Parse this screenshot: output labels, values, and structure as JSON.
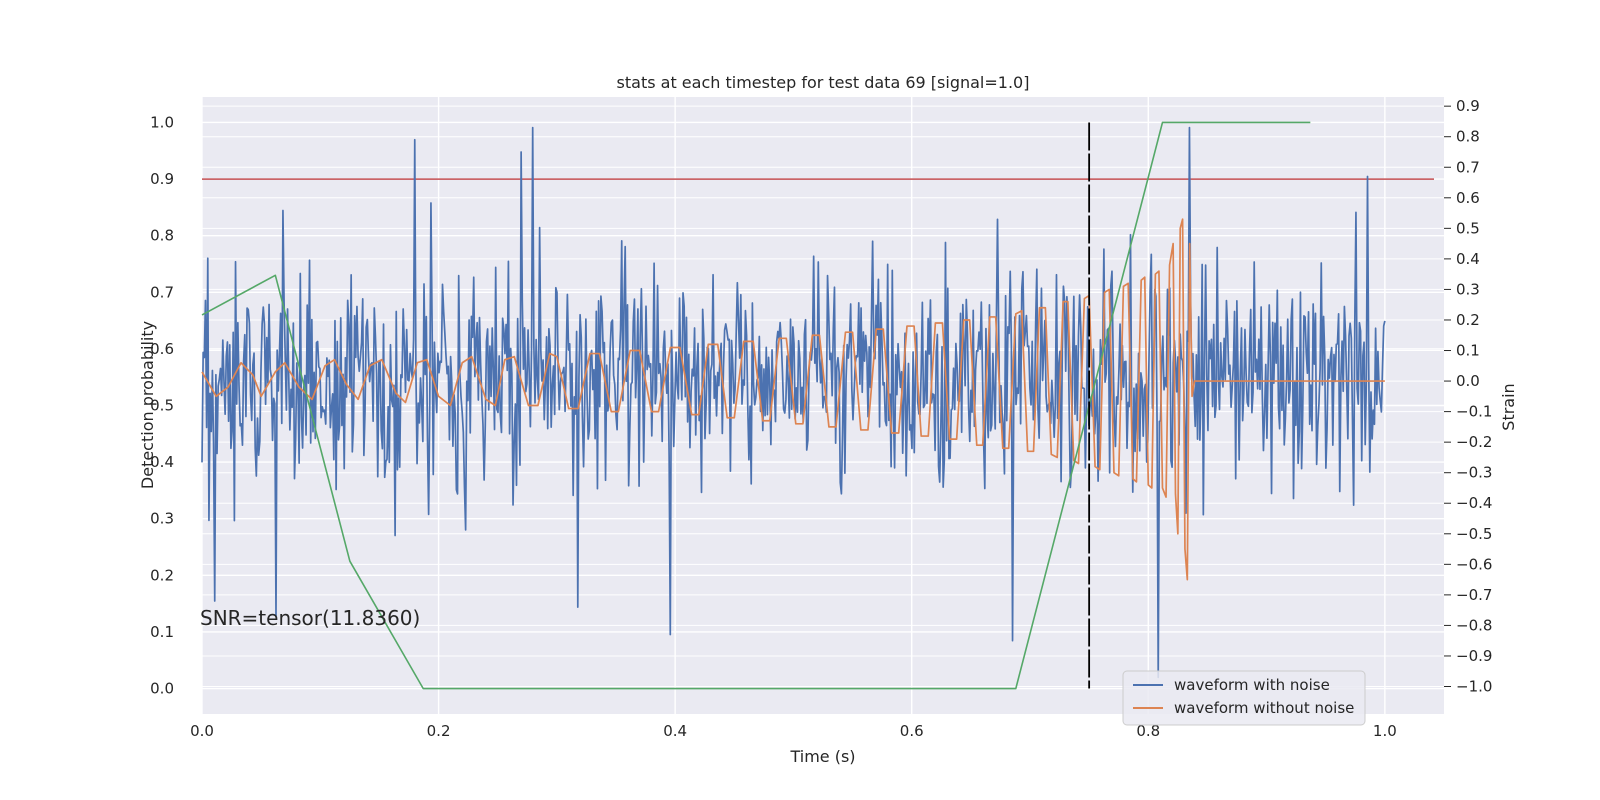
{
  "chart_data": {
    "type": "line",
    "title": "stats at each timestep for test data 69 [signal=1.0]",
    "xlabel": "Time (s)",
    "ylabel_left": "Detection probability",
    "ylabel_right": "Strain",
    "xlim": [
      0.0,
      1.05
    ],
    "ylim_left": [
      -0.045,
      1.045
    ],
    "ylim_right": [
      -1.09,
      0.93
    ],
    "x_ticks": [
      "0.0",
      "0.2",
      "0.4",
      "0.6",
      "0.8",
      "1.0"
    ],
    "y_left_ticks": [
      "0.0",
      "0.1",
      "0.2",
      "0.3",
      "0.4",
      "0.5",
      "0.6",
      "0.7",
      "0.8",
      "0.9",
      "1.0"
    ],
    "y_right_ticks": [
      "−1.0",
      "−0.9",
      "−0.8",
      "−0.7",
      "−0.6",
      "−0.5",
      "−0.4",
      "−0.3",
      "−0.2",
      "−0.1",
      "0.0",
      "0.1",
      "0.2",
      "0.3",
      "0.4",
      "0.5",
      "0.6",
      "0.7",
      "0.8",
      "0.9"
    ],
    "annotation": "SNR=tensor(11.8360)",
    "threshold": {
      "axis": "left",
      "y": 0.9,
      "color": "#c44e52"
    },
    "marker_line": {
      "x": 0.75,
      "y_range": [
        0.0,
        1.0
      ],
      "color": "#000000",
      "style": "dashed"
    },
    "grid": true,
    "legend_position": "bottom-right",
    "series": [
      {
        "name": "waveform with noise",
        "axis": "right",
        "color": "#4c72b0",
        "kind": "noise",
        "x_range": [
          0.0,
          1.0
        ],
        "sample_count": 1024,
        "approx_std": 0.18,
        "approx_range": [
          -1.0,
          0.83
        ],
        "visible_extremes": [
          {
            "x": 0.011,
            "y": -0.72
          },
          {
            "x": 0.063,
            "y": -0.77
          },
          {
            "x": 0.18,
            "y": 0.79
          },
          {
            "x": 0.27,
            "y": 0.75
          },
          {
            "x": 0.28,
            "y": 0.83
          },
          {
            "x": 0.318,
            "y": -0.74
          },
          {
            "x": 0.396,
            "y": -0.83
          },
          {
            "x": 0.685,
            "y": -0.85
          },
          {
            "x": 0.808,
            "y": -0.97
          },
          {
            "x": 0.835,
            "y": 0.83
          },
          {
            "x": 0.985,
            "y": 0.67
          }
        ]
      },
      {
        "name": "waveform without noise",
        "axis": "right",
        "color": "#dd8452",
        "kind": "chirp",
        "points": [
          [
            0.0,
            0.03
          ],
          [
            0.012,
            -0.05
          ],
          [
            0.022,
            -0.02
          ],
          [
            0.033,
            0.06
          ],
          [
            0.043,
            0.02
          ],
          [
            0.05,
            -0.05
          ],
          [
            0.062,
            0.03
          ],
          [
            0.07,
            0.06
          ],
          [
            0.082,
            -0.02
          ],
          [
            0.093,
            -0.06
          ],
          [
            0.104,
            0.05
          ],
          [
            0.112,
            0.07
          ],
          [
            0.122,
            -0.01
          ],
          [
            0.132,
            -0.06
          ],
          [
            0.142,
            0.05
          ],
          [
            0.152,
            0.07
          ],
          [
            0.164,
            -0.04
          ],
          [
            0.172,
            -0.07
          ],
          [
            0.182,
            0.06
          ],
          [
            0.19,
            0.07
          ],
          [
            0.2,
            -0.05
          ],
          [
            0.21,
            -0.08
          ],
          [
            0.22,
            0.06
          ],
          [
            0.228,
            0.08
          ],
          [
            0.24,
            -0.06
          ],
          [
            0.248,
            -0.08
          ],
          [
            0.256,
            0.07
          ],
          [
            0.264,
            0.08
          ],
          [
            0.276,
            -0.08
          ],
          [
            0.284,
            -0.08
          ],
          [
            0.294,
            0.09
          ],
          [
            0.3,
            0.08
          ],
          [
            0.31,
            -0.09
          ],
          [
            0.318,
            -0.09
          ],
          [
            0.328,
            0.09
          ],
          [
            0.336,
            0.09
          ],
          [
            0.346,
            -0.1
          ],
          [
            0.352,
            -0.1
          ],
          [
            0.362,
            0.1
          ],
          [
            0.37,
            0.1
          ],
          [
            0.38,
            -0.1
          ],
          [
            0.386,
            -0.1
          ],
          [
            0.396,
            0.11
          ],
          [
            0.404,
            0.11
          ],
          [
            0.414,
            -0.11
          ],
          [
            0.42,
            -0.11
          ],
          [
            0.428,
            0.12
          ],
          [
            0.436,
            0.12
          ],
          [
            0.444,
            -0.12
          ],
          [
            0.45,
            -0.12
          ],
          [
            0.458,
            0.13
          ],
          [
            0.466,
            0.13
          ],
          [
            0.474,
            -0.13
          ],
          [
            0.48,
            -0.13
          ],
          [
            0.488,
            0.14
          ],
          [
            0.494,
            0.14
          ],
          [
            0.502,
            -0.14
          ],
          [
            0.508,
            -0.14
          ],
          [
            0.516,
            0.15
          ],
          [
            0.522,
            0.15
          ],
          [
            0.53,
            -0.15
          ],
          [
            0.536,
            -0.15
          ],
          [
            0.544,
            0.16
          ],
          [
            0.55,
            0.16
          ],
          [
            0.557,
            -0.16
          ],
          [
            0.563,
            -0.16
          ],
          [
            0.57,
            0.17
          ],
          [
            0.576,
            0.17
          ],
          [
            0.583,
            -0.17
          ],
          [
            0.589,
            -0.17
          ],
          [
            0.596,
            0.18
          ],
          [
            0.602,
            0.18
          ],
          [
            0.608,
            -0.18
          ],
          [
            0.614,
            -0.18
          ],
          [
            0.62,
            0.19
          ],
          [
            0.626,
            0.19
          ],
          [
            0.632,
            -0.19
          ],
          [
            0.638,
            -0.19
          ],
          [
            0.644,
            0.2
          ],
          [
            0.649,
            0.2
          ],
          [
            0.655,
            -0.21
          ],
          [
            0.66,
            -0.21
          ],
          [
            0.666,
            0.21
          ],
          [
            0.671,
            0.21
          ],
          [
            0.677,
            -0.22
          ],
          [
            0.682,
            -0.22
          ],
          [
            0.688,
            0.22
          ],
          [
            0.693,
            0.23
          ],
          [
            0.698,
            -0.23
          ],
          [
            0.703,
            -0.23
          ],
          [
            0.708,
            0.24
          ],
          [
            0.713,
            0.24
          ],
          [
            0.718,
            -0.24
          ],
          [
            0.723,
            -0.25
          ],
          [
            0.728,
            0.26
          ],
          [
            0.732,
            0.26
          ],
          [
            0.737,
            -0.26
          ],
          [
            0.741,
            -0.27
          ],
          [
            0.746,
            0.27
          ],
          [
            0.75,
            0.28
          ],
          [
            0.755,
            -0.28
          ],
          [
            0.759,
            -0.29
          ],
          [
            0.763,
            0.29
          ],
          [
            0.767,
            0.3
          ],
          [
            0.771,
            -0.3
          ],
          [
            0.775,
            -0.31
          ],
          [
            0.779,
            0.31
          ],
          [
            0.783,
            0.32
          ],
          [
            0.787,
            -0.32
          ],
          [
            0.79,
            -0.33
          ],
          [
            0.794,
            0.33
          ],
          [
            0.797,
            0.34
          ],
          [
            0.8,
            -0.34
          ],
          [
            0.803,
            -0.35
          ],
          [
            0.806,
            0.35
          ],
          [
            0.809,
            0.36
          ],
          [
            0.812,
            -0.35
          ],
          [
            0.815,
            -0.38
          ],
          [
            0.818,
            0.38
          ],
          [
            0.821,
            0.45
          ],
          [
            0.823,
            -0.37
          ],
          [
            0.825,
            -0.5
          ],
          [
            0.827,
            0.5
          ],
          [
            0.829,
            0.53
          ],
          [
            0.831,
            -0.55
          ],
          [
            0.833,
            -0.65
          ],
          [
            0.835,
            0.45
          ],
          [
            0.837,
            -0.05
          ],
          [
            0.839,
            0.0
          ],
          [
            0.845,
            0.0
          ],
          [
            0.9,
            0.0
          ],
          [
            1.0,
            0.0
          ]
        ]
      },
      {
        "name": "",
        "axis": "left",
        "color": "#55a868",
        "kind": "detection",
        "points": [
          [
            0.0,
            0.66
          ],
          [
            0.062,
            0.73
          ],
          [
            0.125,
            0.225
          ],
          [
            0.187,
            0.0
          ],
          [
            0.688,
            0.0
          ],
          [
            0.812,
            1.0
          ],
          [
            0.937,
            1.0
          ]
        ]
      }
    ]
  },
  "legend": {
    "items": [
      {
        "label": "waveform with noise",
        "color": "#4c72b0"
      },
      {
        "label": "waveform without noise",
        "color": "#dd8452"
      }
    ]
  }
}
